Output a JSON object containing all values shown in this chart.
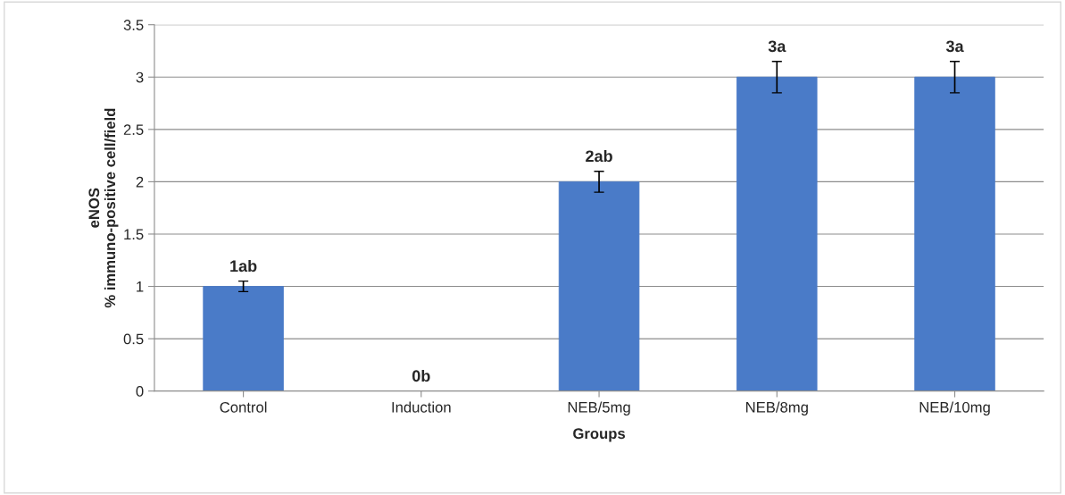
{
  "chart_data": {
    "type": "bar",
    "xlabel": "Groups",
    "ylabel": "eNOS\n% immuno-positive cell/field",
    "categories": [
      "Control",
      "Induction",
      "NEB/5mg",
      "NEB/8mg",
      "NEB/10mg"
    ],
    "values": [
      1,
      0,
      2,
      3,
      3
    ],
    "errors": [
      0.05,
      0,
      0.1,
      0.15,
      0.15
    ],
    "value_labels": [
      "1ab",
      "0b",
      "2ab",
      "3a",
      "3a"
    ],
    "color": "#4a7bc8",
    "ylim": [
      0,
      3.5
    ],
    "yticks": [
      0,
      0.5,
      1,
      1.5,
      2,
      2.5,
      3,
      3.5
    ],
    "grid": "y",
    "legend": false
  }
}
